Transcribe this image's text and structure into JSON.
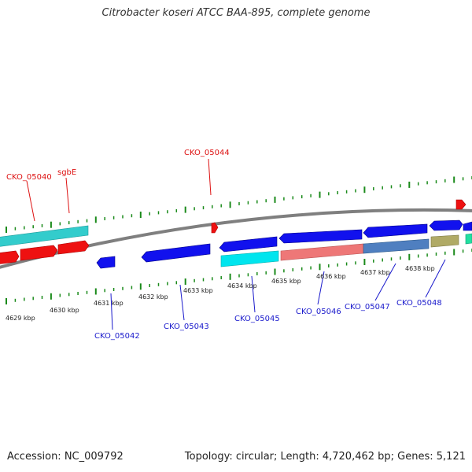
{
  "title": "Citrobacter koseri ATCC BAA-895, complete genome",
  "footer": {
    "accession": "Accession: NC_009792",
    "info": "Topology: circular; Length: 4,720,462 bp; Genes: 5,121"
  },
  "colors": {
    "forward_cds": "#ee1111",
    "reverse_cds": "#1111ee",
    "forward_rna": "#33cccc",
    "reverse_rna": "#00e5ee",
    "backbone": "#7f7f7f",
    "tick": "#1a8a1a",
    "label_fwd": "#dd1111",
    "label_rev": "#1a1acc"
  },
  "scale": {
    "labels": [
      "4629 kbp",
      "4630 kbp",
      "4631 kbp",
      "4632 kbp",
      "4633 kbp",
      "4634 kbp",
      "4635 kbp",
      "4636 kbp",
      "4637 kbp",
      "4638 kbp"
    ]
  },
  "features": {
    "forward": [
      {
        "label": "CKO_05040"
      },
      {
        "label": "sgbE"
      },
      {
        "label": "CKO_05044"
      }
    ],
    "reverse": [
      {
        "label": "CKO_05042"
      },
      {
        "label": "CKO_05043"
      },
      {
        "label": "CKO_05045"
      },
      {
        "label": "CKO_05046"
      },
      {
        "label": "CKO_05047"
      },
      {
        "label": "CKO_05048"
      }
    ]
  }
}
